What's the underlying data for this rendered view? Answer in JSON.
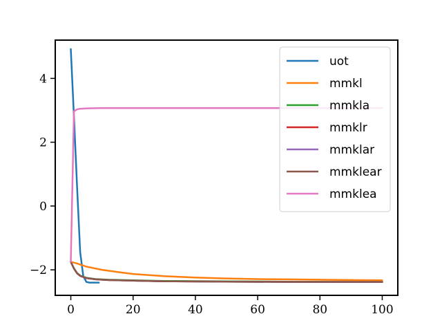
{
  "chart_data": {
    "type": "line",
    "title": "",
    "xlabel": "",
    "ylabel": "",
    "xlim": [
      -5,
      105
    ],
    "ylim": [
      -2.8,
      5.2
    ],
    "xticks": [
      0,
      20,
      40,
      60,
      80,
      100
    ],
    "xtick_labels": [
      "0",
      "20",
      "40",
      "60",
      "80",
      "100"
    ],
    "yticks": [
      -2,
      0,
      2,
      4
    ],
    "ytick_labels": [
      "−2",
      "0",
      "2",
      "4"
    ],
    "grid": false,
    "legend_position": "top-right",
    "series": [
      {
        "name": "uot",
        "color": "#1f77b4",
        "x": [
          0,
          1,
          2,
          3,
          4,
          5,
          6,
          7,
          8,
          9
        ],
        "y": [
          4.92,
          2.8,
          0.6,
          -1.45,
          -2.2,
          -2.38,
          -2.4,
          -2.4,
          -2.4,
          -2.4
        ]
      },
      {
        "name": "mmkl",
        "color": "#ff7f0e",
        "x": [
          0,
          2,
          5,
          10,
          15,
          20,
          30,
          40,
          50,
          60,
          70,
          80,
          90,
          100
        ],
        "y": [
          -1.75,
          -1.8,
          -1.9,
          -2.0,
          -2.07,
          -2.13,
          -2.2,
          -2.24,
          -2.27,
          -2.29,
          -2.3,
          -2.31,
          -2.32,
          -2.33
        ]
      },
      {
        "name": "mmkla",
        "color": "#2ca02c",
        "x": [
          0,
          1,
          2,
          3,
          5,
          8,
          12,
          20,
          30,
          50,
          70,
          100
        ],
        "y": [
          -1.75,
          -1.95,
          -2.1,
          -2.18,
          -2.25,
          -2.29,
          -2.31,
          -2.33,
          -2.35,
          -2.36,
          -2.37,
          -2.38
        ]
      },
      {
        "name": "mmklr",
        "color": "#d62728",
        "x": [
          0,
          1,
          2,
          3,
          5,
          8,
          12,
          20,
          30,
          50,
          70,
          100
        ],
        "y": [
          -1.75,
          -1.96,
          -2.11,
          -2.19,
          -2.26,
          -2.3,
          -2.32,
          -2.34,
          -2.36,
          -2.37,
          -2.38,
          -2.38
        ]
      },
      {
        "name": "mmklar",
        "color": "#9467bd",
        "x": [
          0,
          1,
          2,
          3,
          5,
          8,
          12,
          20,
          30,
          50,
          70,
          100
        ],
        "y": [
          -1.75,
          -1.96,
          -2.11,
          -2.19,
          -2.26,
          -2.3,
          -2.32,
          -2.34,
          -2.36,
          -2.37,
          -2.38,
          -2.38
        ]
      },
      {
        "name": "mmklear",
        "color": "#8c564b",
        "x": [
          0,
          1,
          2,
          3,
          5,
          8,
          12,
          20,
          30,
          50,
          70,
          100
        ],
        "y": [
          -1.75,
          -1.96,
          -2.11,
          -2.19,
          -2.26,
          -2.3,
          -2.32,
          -2.34,
          -2.36,
          -2.37,
          -2.38,
          -2.38
        ]
      },
      {
        "name": "mmklea",
        "color": "#e377c2",
        "x": [
          0,
          1,
          2,
          3,
          5,
          10,
          20,
          40,
          60,
          80,
          100
        ],
        "y": [
          -1.75,
          2.97,
          3.03,
          3.05,
          3.06,
          3.07,
          3.07,
          3.07,
          3.07,
          3.07,
          3.07
        ]
      }
    ]
  }
}
